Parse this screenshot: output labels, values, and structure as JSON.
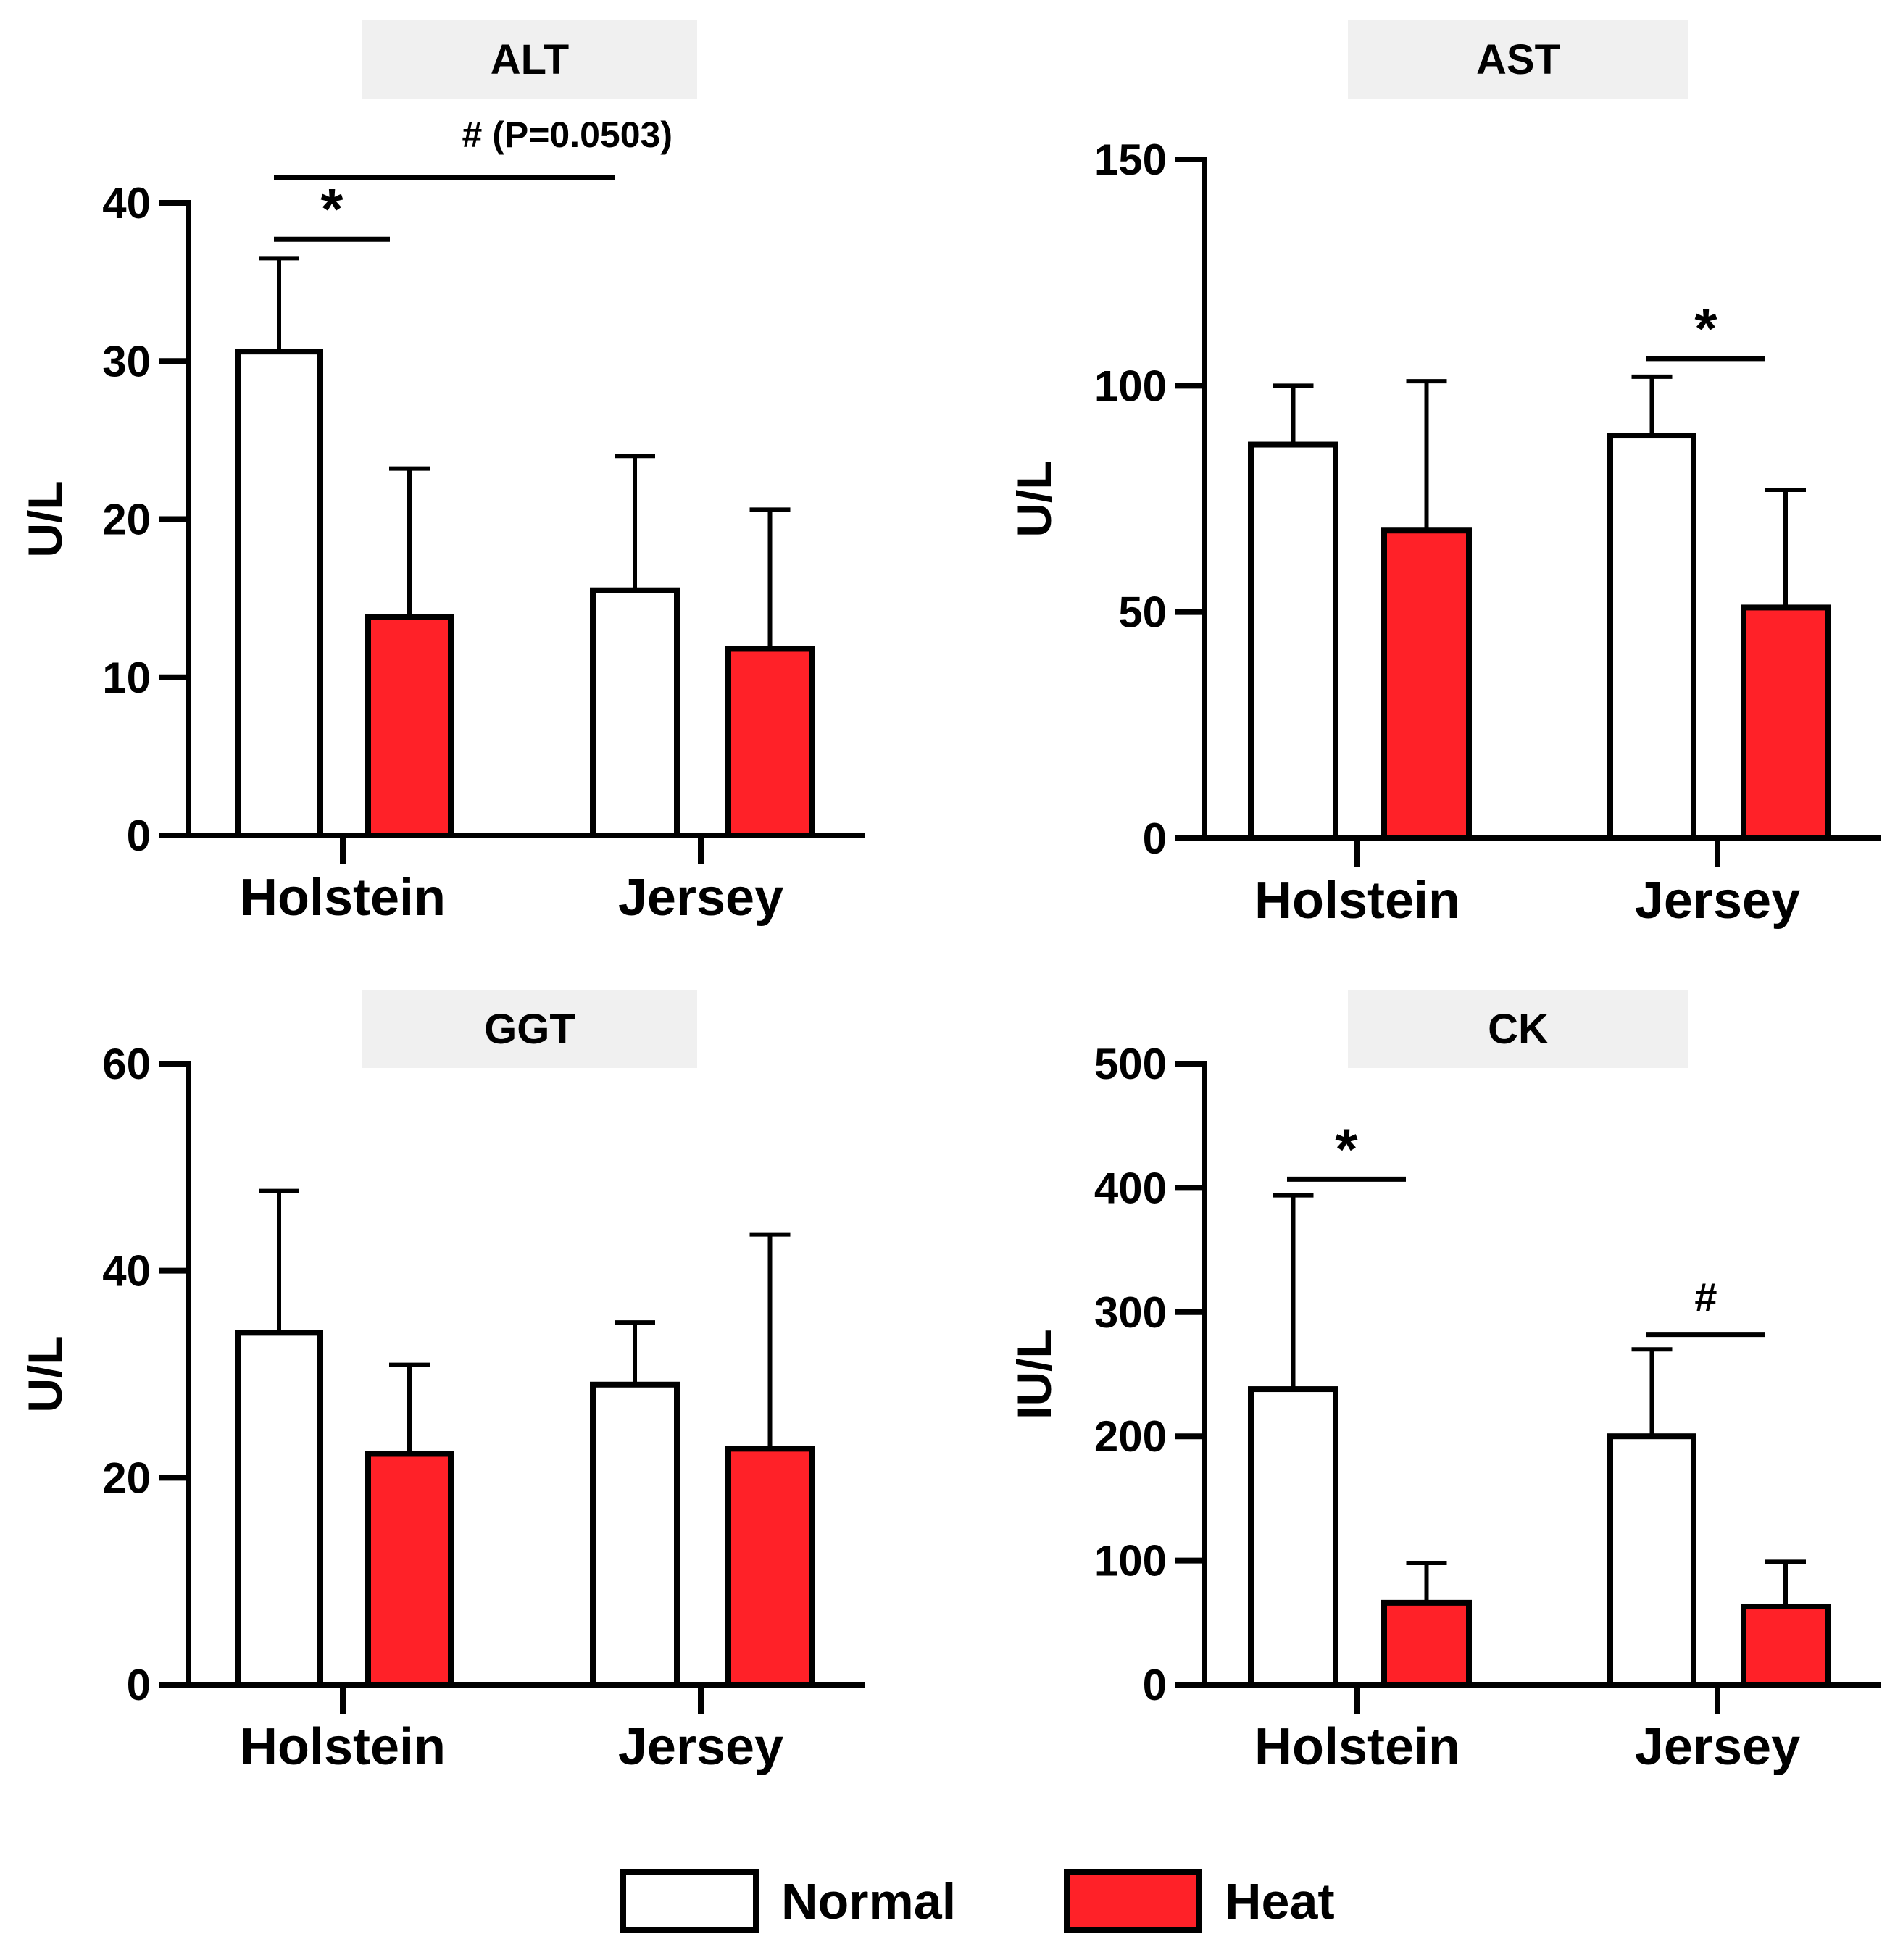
{
  "figure": {
    "legend": [
      {
        "label": "Normal",
        "color": "#ffffff"
      },
      {
        "label": "Heat",
        "color": "#ff2128"
      }
    ]
  },
  "chart_data": [
    {
      "type": "bar",
      "title": "ALT",
      "ylabel": "U/L",
      "ylim": [
        0,
        40
      ],
      "yticks": [
        0,
        10,
        20,
        30,
        40
      ],
      "categories": [
        "Holstein",
        "Jersey"
      ],
      "series": [
        {
          "name": "Normal",
          "color": "#ffffff",
          "values": [
            30.6,
            15.5
          ],
          "errors": [
            5.9,
            8.5
          ]
        },
        {
          "name": "Heat",
          "color": "#ff2128",
          "values": [
            13.8,
            11.8
          ],
          "errors": [
            9.4,
            8.8
          ]
        }
      ],
      "annotations": [
        {
          "label": "*",
          "from": {
            "cat": 0,
            "series": 0
          },
          "to": {
            "cat": 0,
            "series": 1
          },
          "y": 37.7
        },
        {
          "label": "# (P=0.0503)",
          "from": {
            "cat": 0,
            "series": 0
          },
          "to": {
            "cat": 1,
            "series": 0
          },
          "y": 41.6
        }
      ]
    },
    {
      "type": "bar",
      "title": "AST",
      "ylabel": "U/L",
      "ylim": [
        0,
        150
      ],
      "yticks": [
        0,
        50,
        100,
        150
      ],
      "categories": [
        "Holstein",
        "Jersey"
      ],
      "series": [
        {
          "name": "Normal",
          "color": "#ffffff",
          "values": [
            87,
            89
          ],
          "errors": [
            13,
            13
          ]
        },
        {
          "name": "Heat",
          "color": "#ff2128",
          "values": [
            68,
            51
          ],
          "errors": [
            33,
            26
          ]
        }
      ],
      "annotations": [
        {
          "label": "*",
          "from": {
            "cat": 1,
            "series": 0
          },
          "to": {
            "cat": 1,
            "series": 1
          },
          "y": 106
        }
      ]
    },
    {
      "type": "bar",
      "title": "GGT",
      "ylabel": "U/L",
      "ylim": [
        0,
        60
      ],
      "yticks": [
        0,
        20,
        40,
        60
      ],
      "categories": [
        "Holstein",
        "Jersey"
      ],
      "series": [
        {
          "name": "Normal",
          "color": "#ffffff",
          "values": [
            34,
            29
          ],
          "errors": [
            13.7,
            6
          ]
        },
        {
          "name": "Heat",
          "color": "#ff2128",
          "values": [
            22.3,
            22.8
          ],
          "errors": [
            8.6,
            20.7
          ]
        }
      ],
      "annotations": []
    },
    {
      "type": "bar",
      "title": "CK",
      "ylabel": "IU/L",
      "ylim": [
        0,
        500
      ],
      "yticks": [
        0,
        100,
        200,
        300,
        400,
        500
      ],
      "categories": [
        "Holstein",
        "Jersey"
      ],
      "series": [
        {
          "name": "Normal",
          "color": "#ffffff",
          "values": [
            238,
            200
          ],
          "errors": [
            156,
            70
          ]
        },
        {
          "name": "Heat",
          "color": "#ff2128",
          "values": [
            66,
            63
          ],
          "errors": [
            32,
            36
          ]
        }
      ],
      "annotations": [
        {
          "label": "*",
          "from": {
            "cat": 0,
            "series": 0
          },
          "to": {
            "cat": 0,
            "series": 1
          },
          "y": 407
        },
        {
          "label": "#",
          "from": {
            "cat": 1,
            "series": 0
          },
          "to": {
            "cat": 1,
            "series": 1
          },
          "y": 282
        }
      ]
    }
  ]
}
